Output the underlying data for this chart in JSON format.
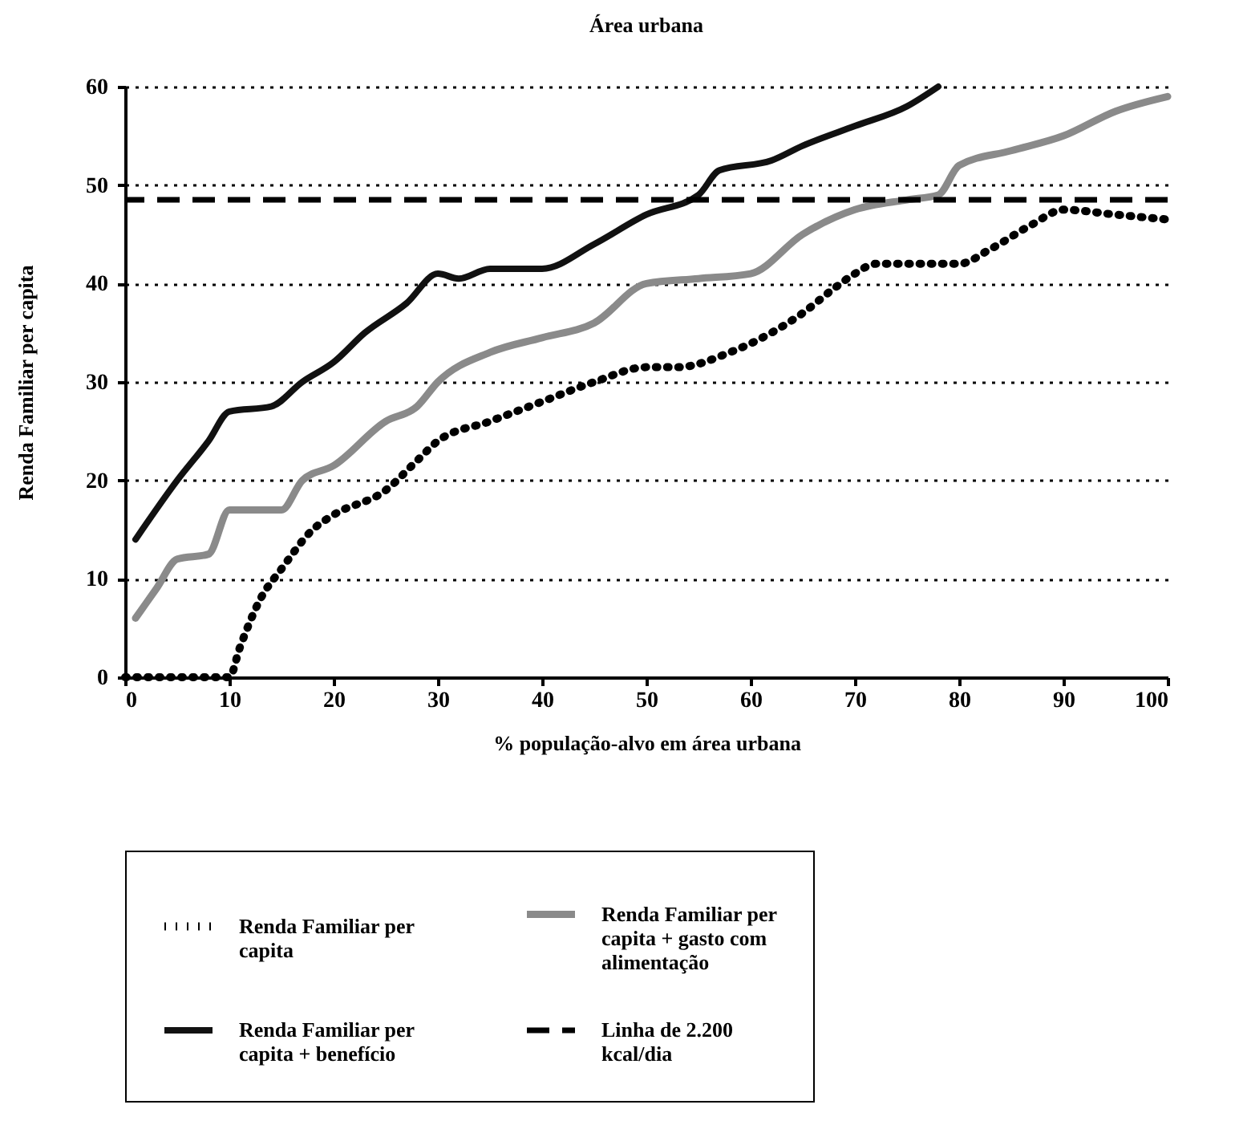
{
  "chart_data": {
    "type": "line",
    "title": "Área urbana",
    "xlabel": "% população-alvo em área urbana",
    "ylabel": "Renda Familiar per capita",
    "xlim": [
      0,
      100
    ],
    "xticks": [
      0,
      10,
      20,
      30,
      40,
      50,
      60,
      70,
      80,
      90,
      100
    ],
    "ylim": [
      0,
      60
    ],
    "yticks": [
      0,
      10,
      20,
      30,
      40,
      50,
      60
    ],
    "grid": "y",
    "legend": "bottom",
    "series": [
      {
        "name": "Renda Familiar per capita",
        "color": "#000000",
        "line_style": "dotted",
        "x": [
          0,
          10,
          11,
          13,
          15,
          18,
          20,
          25,
          28,
          30,
          35,
          40,
          45,
          50,
          53,
          58,
          62,
          65,
          68,
          70,
          72,
          75,
          80,
          83,
          87,
          90,
          95,
          100
        ],
        "values": [
          0,
          0,
          3,
          8,
          11,
          15,
          16.5,
          19,
          22,
          24,
          26,
          28,
          30,
          31.5,
          31.5,
          33,
          35,
          37,
          39.5,
          41,
          42,
          42,
          42,
          43.5,
          46,
          47.5,
          47,
          46.5
        ]
      },
      {
        "name": "Renda Familiar per capita + gasto com alimentação",
        "color": "#8a8a8a",
        "line_style": "solid",
        "x": [
          1,
          3,
          5,
          8,
          10,
          13,
          15,
          17,
          20,
          25,
          28,
          30,
          35,
          40,
          45,
          50,
          55,
          60,
          65,
          70,
          75,
          78,
          80,
          85,
          90,
          95,
          100
        ],
        "values": [
          6,
          9,
          12,
          12.5,
          17,
          17,
          17,
          20,
          21.5,
          26,
          27.5,
          30,
          33,
          34.5,
          36,
          40,
          40.5,
          41,
          45,
          47.5,
          48.5,
          49,
          52,
          53.5,
          55,
          57.5,
          59
        ]
      },
      {
        "name": "Renda Familiar per capita + benefício",
        "color": "#111111",
        "line_style": "solid",
        "x": [
          1,
          5,
          8,
          10,
          14,
          17,
          20,
          23,
          27,
          30,
          32,
          35,
          40,
          45,
          50,
          55,
          57,
          62,
          65,
          70,
          75,
          78
        ],
        "values": [
          14,
          20,
          24,
          27,
          27.5,
          30,
          32,
          35,
          38,
          41,
          40.5,
          41.5,
          41.5,
          44,
          47,
          49,
          51.5,
          52.5,
          54,
          56,
          58,
          60
        ]
      }
    ],
    "ref_lines": [
      {
        "axis": "y",
        "value": 48.5,
        "label": "Linha de 2.200 kcal/dia",
        "color": "#000000",
        "line_style": "dashed"
      }
    ]
  }
}
